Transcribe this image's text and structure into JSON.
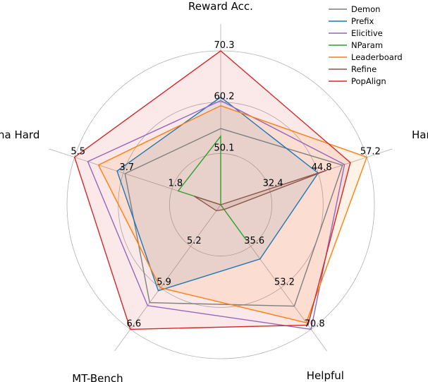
{
  "chart_data": {
    "type": "radar",
    "axes": [
      "Reward Acc.",
      "Harmless",
      "Helpful",
      "MT-Bench",
      "Arena Hard"
    ],
    "tick_labels": [
      [
        "50.1",
        "60.2",
        "70.3"
      ],
      [
        "32.4",
        "44.8",
        "57.2"
      ],
      [
        "35.6",
        "53.2",
        "70.8"
      ],
      [
        "5.2",
        "5.9",
        "6.6"
      ],
      [
        "1.8",
        "3.7",
        "5.5"
      ]
    ],
    "ranges": [
      [
        40.0,
        70.3
      ],
      [
        20.0,
        57.2
      ],
      [
        18.0,
        70.8
      ],
      [
        4.5,
        6.6
      ],
      [
        0.0,
        5.5
      ]
    ],
    "grid": true,
    "legend_position": "top-right",
    "series": [
      {
        "name": "Demon",
        "color": "#7f7f7f",
        "fill": false,
        "values": [
          55.0,
          51.0,
          61.0,
          6.15,
          3.6
        ]
      },
      {
        "name": "Prefix",
        "color": "#1f77b4",
        "fill": true,
        "values": [
          61.2,
          44.8,
          41.0,
          5.95,
          3.9
        ]
      },
      {
        "name": "Elicitive",
        "color": "#9467bd",
        "fill": false,
        "values": [
          60.5,
          51.5,
          70.8,
          6.2,
          5.0
        ]
      },
      {
        "name": "NParam",
        "color": "#2ca02c",
        "fill": false,
        "values": [
          53.5,
          20.0,
          33.0,
          4.5,
          1.6
        ]
      },
      {
        "name": "Leaderboard",
        "color": "#ff7f0e",
        "fill": true,
        "values": [
          59.5,
          57.2,
          68.0,
          5.9,
          4.6
        ]
      },
      {
        "name": "Refine",
        "color": "#8c564b",
        "fill": true,
        "values": [
          40.0,
          47.0,
          20.0,
          4.6,
          1.0
        ]
      },
      {
        "name": "PopAlign",
        "color": "#d62728",
        "fill": true,
        "values": [
          70.3,
          53.0,
          69.0,
          6.6,
          5.5
        ]
      }
    ]
  }
}
